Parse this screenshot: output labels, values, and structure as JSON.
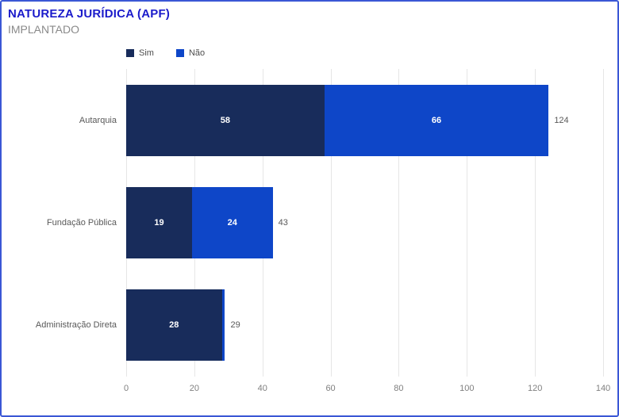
{
  "header": {
    "title": "NATUREZA JURÍDICA (APF)",
    "subtitle": "IMPLANTADO"
  },
  "legend": {
    "items": [
      {
        "label": "Sim",
        "color": "#182c5b"
      },
      {
        "label": "Não",
        "color": "#0e46c8"
      }
    ],
    "position": "top"
  },
  "chart_data": {
    "type": "bar",
    "orientation": "horizontal",
    "stacked": true,
    "title": "NATUREZA JURÍDICA (APF)",
    "subtitle": "IMPLANTADO",
    "categories": [
      "Autarquia",
      "Fundação Pública",
      "Administração Direta"
    ],
    "series": [
      {
        "name": "Sim",
        "color": "#182c5b",
        "values": [
          58,
          19,
          28
        ]
      },
      {
        "name": "Não",
        "color": "#0e46c8",
        "values": [
          66,
          24,
          1
        ]
      }
    ],
    "totals": [
      124,
      43,
      29
    ],
    "xlim": [
      0,
      140
    ],
    "xticks": [
      0,
      20,
      40,
      60,
      80,
      100,
      120,
      140
    ],
    "grid": true,
    "xlabel": "",
    "ylabel": ""
  },
  "colors": {
    "border": "#3a57d5",
    "title": "#1b1bcb",
    "subtitle": "#8a8a8a",
    "axis_text": "#7f7f7f",
    "category_text": "#595959",
    "total_text": "#595959",
    "gridline": "#e6e6e6",
    "bar_label": "#ffffff"
  }
}
